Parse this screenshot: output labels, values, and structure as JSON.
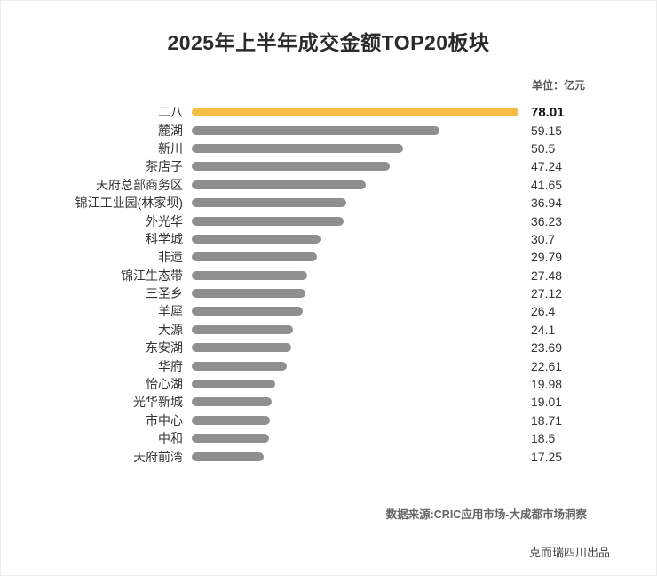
{
  "title": "2025年上半年成交金额TOP20板块",
  "unit_label": "单位：亿元",
  "footer": {
    "source": "数据来源:CRIC应用市场-大成都市场洞察",
    "credit": "克而瑞四川出品"
  },
  "colors": {
    "highlight_bar": "#f5bd45",
    "default_bar": "#8f8f8f",
    "text": "#333333"
  },
  "chart_data": {
    "type": "bar",
    "orientation": "horizontal",
    "title": "2025年上半年成交金额TOP20板块",
    "unit": "亿元",
    "legend_position": "none",
    "grid": false,
    "xlim": [
      0,
      78.01
    ],
    "highlight_index": 0,
    "categories": [
      "二八",
      "麓湖",
      "新川",
      "茶店子",
      "天府总部商务区",
      "锦江工业园(林家坝)",
      "外光华",
      "科学城",
      "非遗",
      "锦江生态带",
      "三圣乡",
      "羊犀",
      "大源",
      "东安湖",
      "华府",
      "怡心湖",
      "光华新城",
      "市中心",
      "中和",
      "天府前湾"
    ],
    "values": [
      78.01,
      59.15,
      50.5,
      47.24,
      41.65,
      36.94,
      36.23,
      30.7,
      29.79,
      27.48,
      27.12,
      26.4,
      24.1,
      23.69,
      22.61,
      19.98,
      19.01,
      18.71,
      18.5,
      17.25
    ],
    "value_labels": [
      "78.01",
      "59.15",
      "50.5",
      "47.24",
      "41.65",
      "36.94",
      "36.23",
      "30.7",
      "29.79",
      "27.48",
      "27.12",
      "26.4",
      "24.1",
      "23.69",
      "22.61",
      "19.98",
      "19.01",
      "18.71",
      "18.5",
      "17.25"
    ]
  }
}
